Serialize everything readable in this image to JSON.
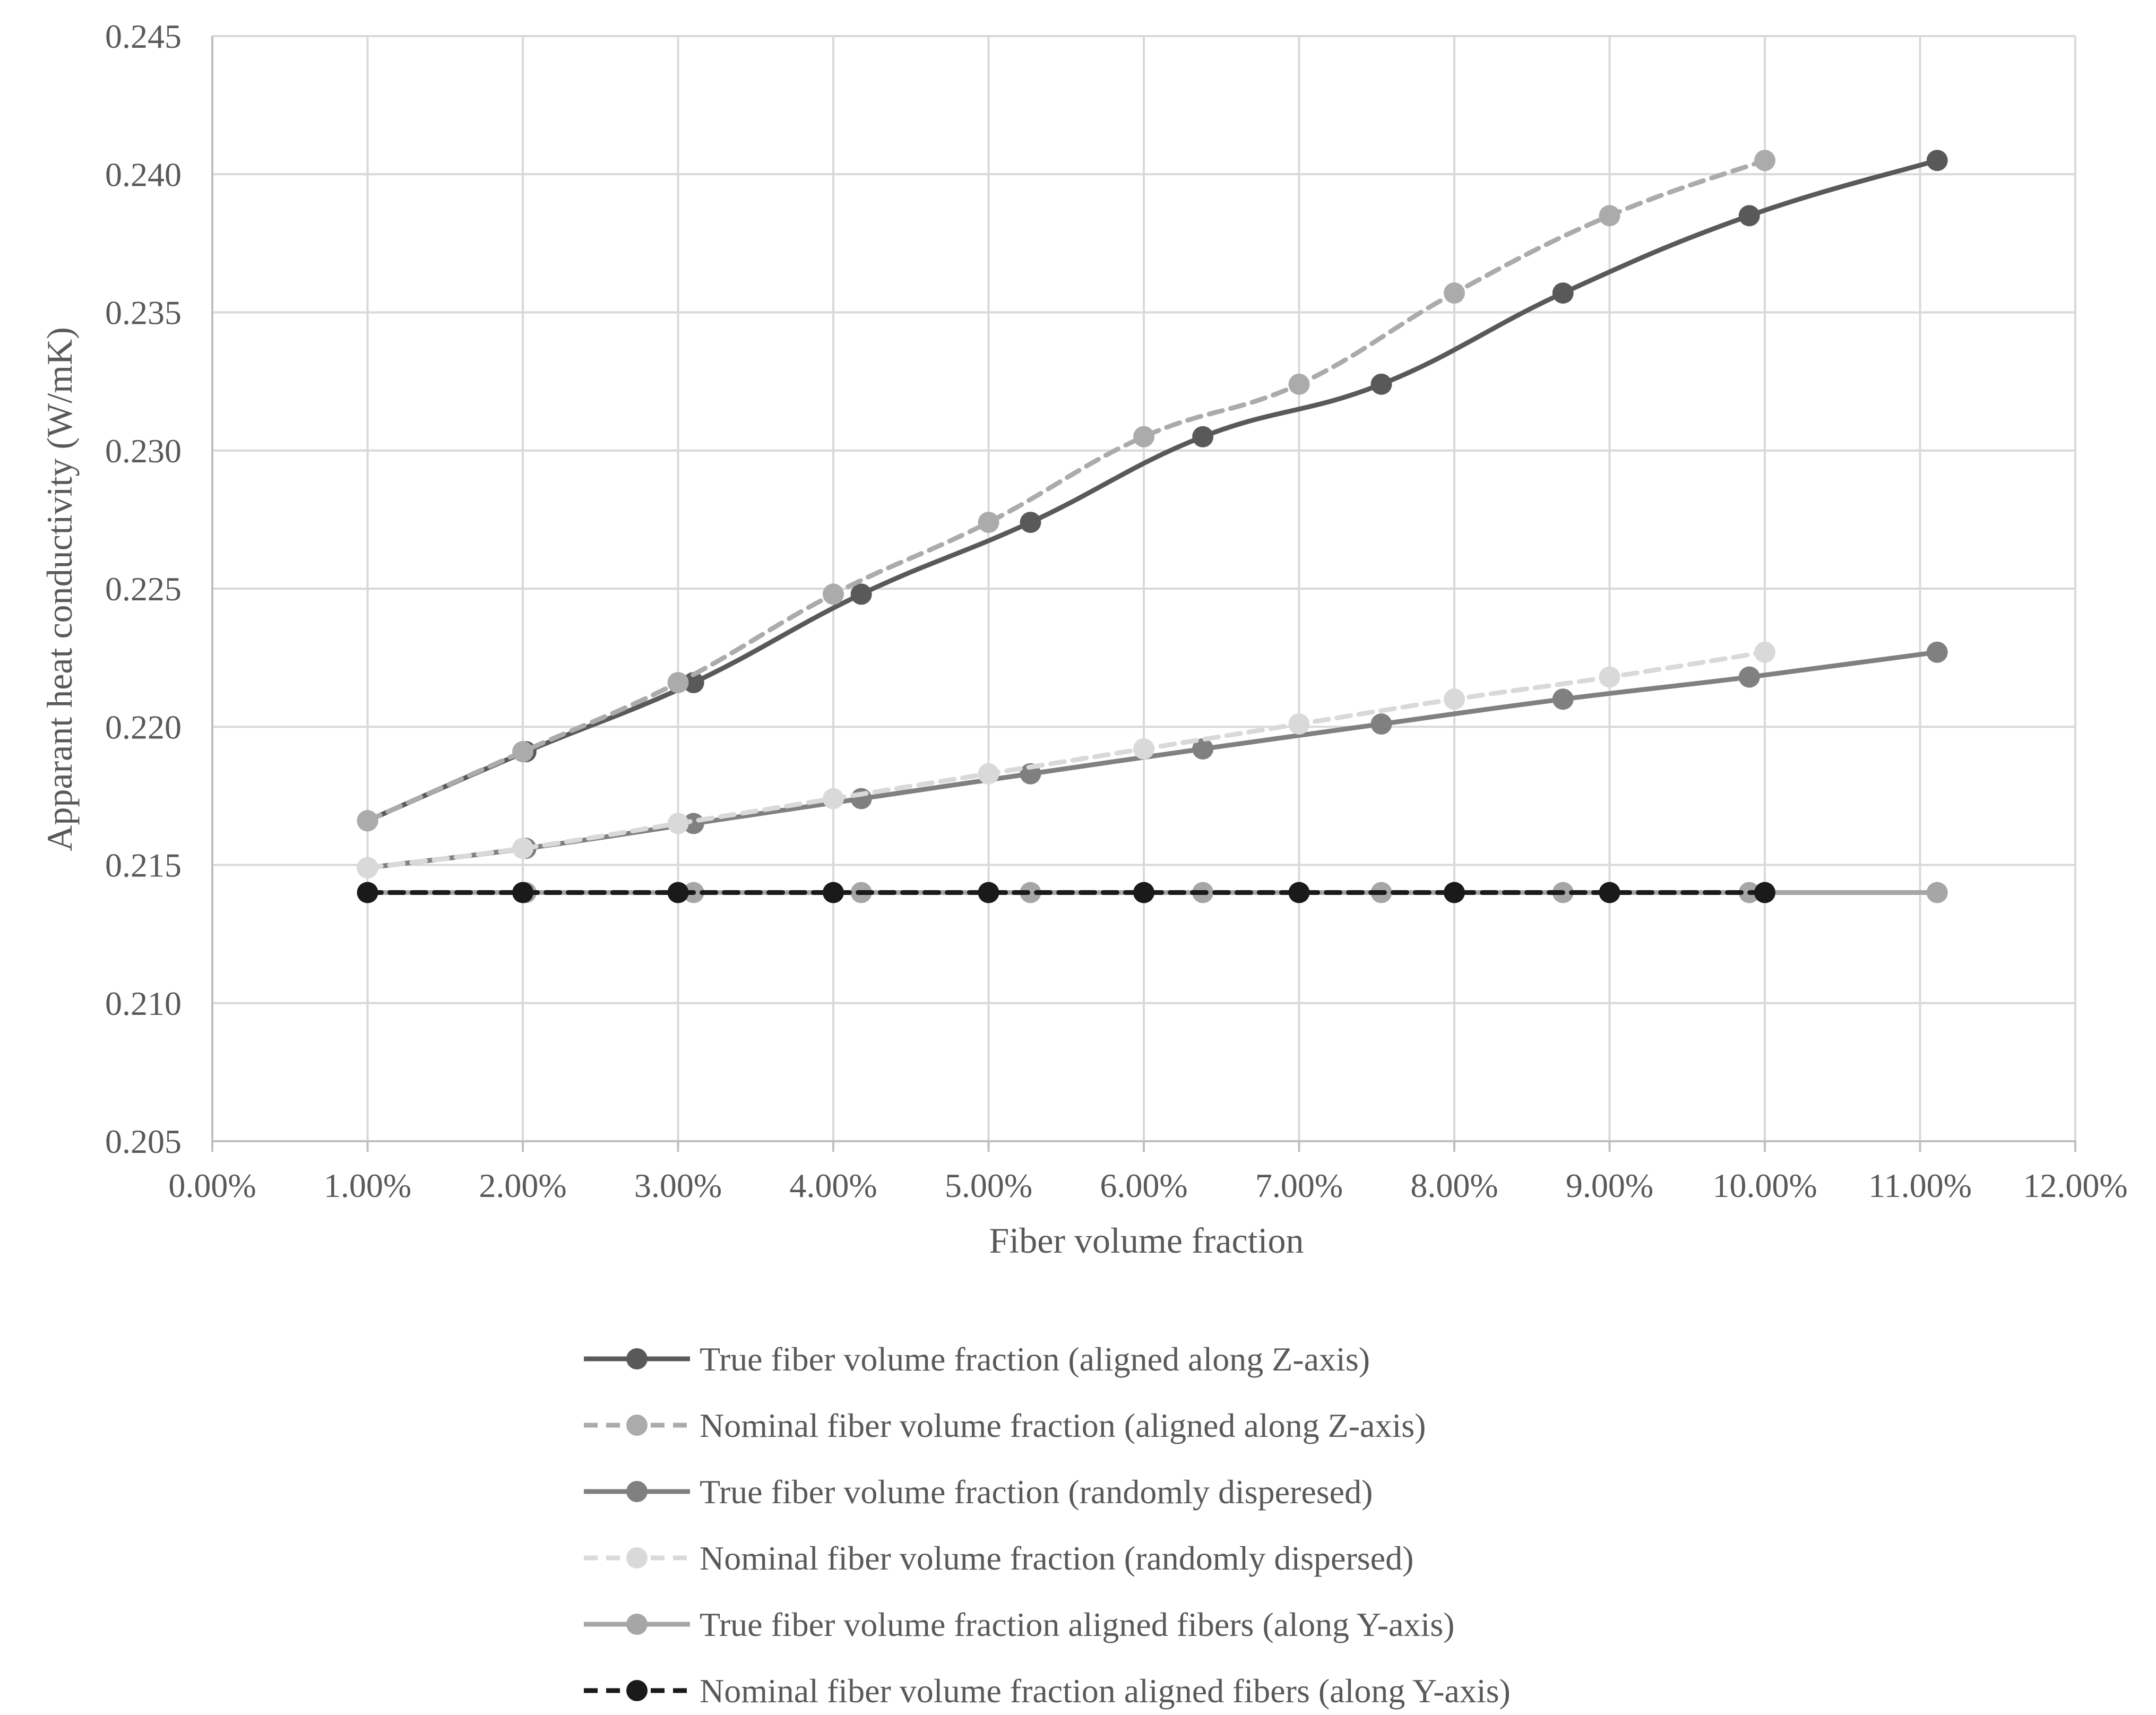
{
  "chart_data": {
    "type": "line",
    "title": "",
    "xlabel": "Fiber volume fraction",
    "ylabel": "Apparant heat conductivity  (W/mK)",
    "xlim": [
      0,
      0.12
    ],
    "ylim": [
      0.205,
      0.245
    ],
    "x_ticks": [
      {
        "value": 0.0,
        "label": "0.00%"
      },
      {
        "value": 0.01,
        "label": "1.00%"
      },
      {
        "value": 0.02,
        "label": "2.00%"
      },
      {
        "value": 0.03,
        "label": "3.00%"
      },
      {
        "value": 0.04,
        "label": "4.00%"
      },
      {
        "value": 0.05,
        "label": "5.00%"
      },
      {
        "value": 0.06,
        "label": "6.00%"
      },
      {
        "value": 0.07,
        "label": "7.00%"
      },
      {
        "value": 0.08,
        "label": "8.00%"
      },
      {
        "value": 0.09,
        "label": "9.00%"
      },
      {
        "value": 0.1,
        "label": "10.00%"
      },
      {
        "value": 0.11,
        "label": "11.00%"
      },
      {
        "value": 0.12,
        "label": "12.00%"
      }
    ],
    "y_ticks": [
      {
        "value": 0.205,
        "label": "0.205"
      },
      {
        "value": 0.21,
        "label": "0.210"
      },
      {
        "value": 0.215,
        "label": "0.215"
      },
      {
        "value": 0.22,
        "label": "0.220"
      },
      {
        "value": 0.225,
        "label": "0.225"
      },
      {
        "value": 0.23,
        "label": "0.230"
      },
      {
        "value": 0.235,
        "label": "0.235"
      },
      {
        "value": 0.24,
        "label": "0.240"
      },
      {
        "value": 0.245,
        "label": "0.245"
      }
    ],
    "grid": true,
    "legend_position": "bottom",
    "series": [
      {
        "name": "True fiber volume fraction (aligned along Z-axis)",
        "color": "#595959",
        "dashed": false,
        "x": [
          0.01,
          0.0202,
          0.031,
          0.0418,
          0.0527,
          0.0638,
          0.0753,
          0.087,
          0.099,
          0.1111
        ],
        "y": [
          0.2166,
          0.2191,
          0.2216,
          0.2248,
          0.2274,
          0.2305,
          0.2324,
          0.2357,
          0.2385,
          0.2405
        ]
      },
      {
        "name": "Nominal fiber volume fraction (aligned along Z-axis)",
        "color": "#ababab",
        "dashed": true,
        "x": [
          0.01,
          0.02,
          0.03,
          0.04,
          0.05,
          0.06,
          0.07,
          0.08,
          0.09,
          0.1
        ],
        "y": [
          0.2166,
          0.2191,
          0.2216,
          0.2248,
          0.2274,
          0.2305,
          0.2324,
          0.2357,
          0.2385,
          0.2405
        ]
      },
      {
        "name": "True fiber volume fraction (randomly disperesed)",
        "color": "#808080",
        "dashed": false,
        "x": [
          0.01,
          0.0202,
          0.031,
          0.0418,
          0.0527,
          0.0638,
          0.0753,
          0.087,
          0.099,
          0.1111
        ],
        "y": [
          0.2149,
          0.2156,
          0.2165,
          0.2174,
          0.2183,
          0.2192,
          0.2201,
          0.221,
          0.2218,
          0.2227
        ]
      },
      {
        "name": "Nominal fiber volume fraction (randomly dispersed)",
        "color": "#d9d9d9",
        "dashed": true,
        "x": [
          0.01,
          0.02,
          0.03,
          0.04,
          0.05,
          0.06,
          0.07,
          0.08,
          0.09,
          0.1
        ],
        "y": [
          0.2149,
          0.2156,
          0.2165,
          0.2174,
          0.2183,
          0.2192,
          0.2201,
          0.221,
          0.2218,
          0.2227
        ]
      },
      {
        "name": "True fiber volume fraction aligned fibers (along Y-axis)",
        "color": "#a6a6a6",
        "dashed": false,
        "x": [
          0.01,
          0.0202,
          0.031,
          0.0418,
          0.0527,
          0.0638,
          0.0753,
          0.087,
          0.099,
          0.1111
        ],
        "y": [
          0.214,
          0.214,
          0.214,
          0.214,
          0.214,
          0.214,
          0.214,
          0.214,
          0.214,
          0.214
        ]
      },
      {
        "name": "Nominal fiber volume fraction aligned fibers (along Y-axis)",
        "color": "#1a1a1a",
        "dashed": true,
        "x": [
          0.01,
          0.02,
          0.03,
          0.04,
          0.05,
          0.06,
          0.07,
          0.08,
          0.09,
          0.1
        ],
        "y": [
          0.214,
          0.214,
          0.214,
          0.214,
          0.214,
          0.214,
          0.214,
          0.214,
          0.214,
          0.214
        ]
      }
    ]
  }
}
